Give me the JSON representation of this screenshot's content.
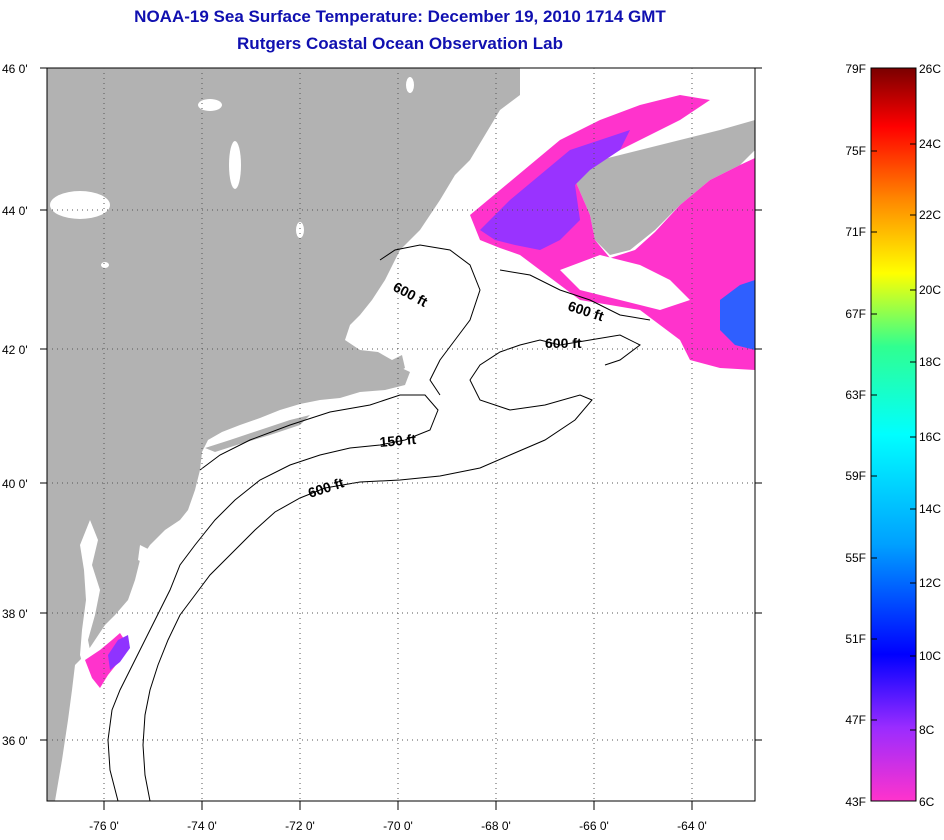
{
  "title": "NOAA-19 Sea Surface Temperature:  December 19, 2010 1714 GMT",
  "subtitle": "Rutgers Coastal Ocean Observation Lab",
  "lat_labels": [
    "46 0'",
    "44 0'",
    "42 0'",
    "40 0'",
    "38 0'",
    "36 0'"
  ],
  "lon_labels": [
    "-76 0'",
    "-74 0'",
    "-72 0'",
    "-70 0'",
    "-68 0'",
    "-66 0'",
    "-64 0'"
  ],
  "contours": [
    {
      "label": "600 ft"
    },
    {
      "label": "600 ft"
    },
    {
      "label": "600 ft"
    },
    {
      "label": "150 ft"
    },
    {
      "label": "600 ft"
    }
  ],
  "colorbar": {
    "fahrenheit": [
      "79F",
      "75F",
      "71F",
      "67F",
      "63F",
      "59F",
      "55F",
      "51F",
      "47F",
      "43F"
    ],
    "celsius": [
      "26C",
      "24C",
      "22C",
      "20C",
      "18C",
      "16C",
      "14C",
      "12C",
      "10C",
      "8C",
      "6C"
    ]
  },
  "colors": {
    "title": "#1010b0",
    "land": "#b2b2b2",
    "ocean": "#ffffff",
    "sst_cold": "#ff33cc",
    "sst_cool": "#9933ff",
    "sst_mid": "#2f5fff"
  }
}
